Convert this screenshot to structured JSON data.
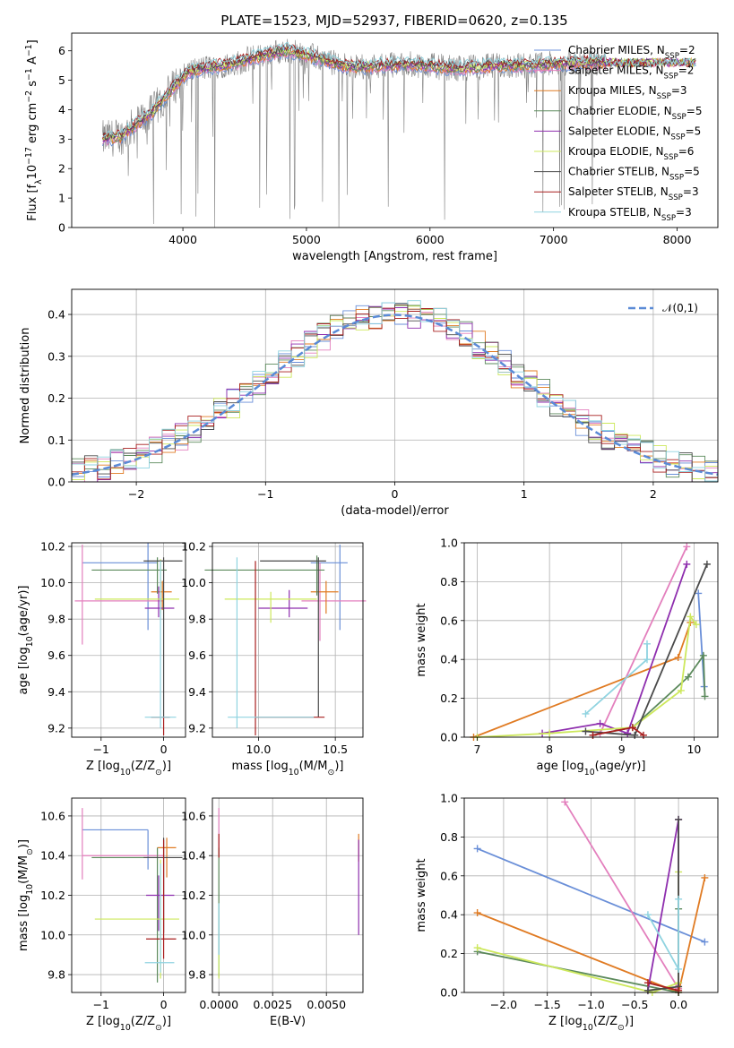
{
  "chart_data": [
    {
      "id": "spectrum",
      "type": "line",
      "title": "PLATE=1523, MJD=52937, FIBERID=0620, z=0.135",
      "xlabel": "wavelength [Angstrom, rest frame]",
      "ylabel": "Flux [f$_\\lambda$10$^{-17}$ erg cm$^{-2}$ s$^{-1}$ A$^{-1}$]",
      "xlim": [
        3100,
        8330
      ],
      "ylim": [
        0,
        6.6
      ],
      "xticks": [
        4000,
        5000,
        6000,
        7000,
        8000
      ],
      "yticks": [
        0,
        1,
        2,
        3,
        4,
        5,
        6
      ],
      "grid": false,
      "legend_position": "top-right",
      "data_color": "#808080",
      "continuum": {
        "x": [
          3350,
          3500,
          3650,
          3750,
          3850,
          3950,
          4050,
          4150,
          4300,
          4450,
          4600,
          4750,
          4850,
          4950,
          5100,
          5250,
          5400,
          5600,
          5800,
          6000,
          6200,
          6400,
          6600,
          6800,
          7000,
          7200,
          7420
        ],
        "y": [
          3.0,
          3.1,
          3.6,
          3.9,
          4.4,
          4.9,
          5.3,
          5.4,
          5.5,
          5.6,
          5.8,
          5.95,
          6.0,
          5.9,
          5.75,
          5.55,
          5.45,
          5.5,
          5.55,
          5.5,
          5.4,
          5.45,
          5.5,
          5.5,
          5.55,
          5.6,
          5.6
        ]
      },
      "series": [
        {
          "name": "Chabrier MILES, N$_{SSP}$=2",
          "color": "#6a8fd8"
        },
        {
          "name": "Salpeter MILES, N$_{SSP}$=2",
          "color": "#e37fbd"
        },
        {
          "name": "Kroupa MILES, N$_{SSP}$=3",
          "color": "#e07b23"
        },
        {
          "name": "Chabrier ELODIE, N$_{SSP}$=5",
          "color": "#5c8a5c"
        },
        {
          "name": "Salpeter ELODIE, N$_{SSP}$=5",
          "color": "#8e2eae"
        },
        {
          "name": "Kroupa ELODIE, N$_{SSP}$=6",
          "color": "#cde85c"
        },
        {
          "name": "Chabrier STELIB, N$_{SSP}$=5",
          "color": "#4a4a4a"
        },
        {
          "name": "Salpeter STELIB, N$_{SSP}$=3",
          "color": "#a81f1f"
        },
        {
          "name": "Kroupa STELIB, N$_{SSP}$=3",
          "color": "#8fd3e0"
        }
      ]
    },
    {
      "id": "residuals",
      "type": "line",
      "xlabel": "(data-model)/error",
      "ylabel": "Normed distribution",
      "xlim": [
        -2.5,
        2.5
      ],
      "ylim": [
        0,
        0.46
      ],
      "xticks": [
        -2,
        -1,
        0,
        1,
        2
      ],
      "yticks": [
        0.0,
        0.1,
        0.2,
        0.3,
        0.4
      ],
      "grid": true,
      "legend_position": "top-right",
      "reference": {
        "name": "$\\mathcal{N}(0,1)$",
        "color": "#5a8ad6"
      },
      "bin_width": 0.1
    },
    {
      "id": "age-vs-Z",
      "type": "scatter",
      "xlabel": "Z [log$_{10}$(Z/Z$_\\odot$)]",
      "ylabel": "age  [log$_{10}$(age/yr)]",
      "xlim": [
        -1.47,
        0.35
      ],
      "ylim": [
        9.15,
        10.22
      ],
      "xticks": [
        -1,
        0
      ],
      "yticks": [
        9.2,
        9.4,
        9.6,
        9.8,
        10.0,
        10.2
      ],
      "grid": true,
      "points": [
        {
          "series": 0,
          "x": -0.25,
          "y": 10.11,
          "xerr": [
            1.05,
            0.15
          ],
          "yerr": [
            0.37,
            0.11
          ]
        },
        {
          "series": 1,
          "x": -1.3,
          "y": 9.9,
          "xerr": [
            0.12,
            1.3
          ],
          "yerr": [
            0.24,
            0.31
          ]
        },
        {
          "series": 2,
          "x": -0.02,
          "y": 9.95,
          "xerr": [
            0.18,
            0.15
          ],
          "yerr": [
            0.1,
            0.06
          ]
        },
        {
          "series": 3,
          "x": -0.1,
          "y": 10.07,
          "xerr": [
            1.05,
            0.15
          ],
          "yerr": [
            0.13,
            0.07
          ]
        },
        {
          "series": 4,
          "x": -0.08,
          "y": 9.86,
          "xerr": [
            0.22,
            0.25
          ],
          "yerr": [
            0.05,
            0.12
          ]
        },
        {
          "series": 5,
          "x": -0.05,
          "y": 9.91,
          "xerr": [
            1.05,
            0.3
          ],
          "yerr": [
            0.08,
            0.22
          ]
        },
        {
          "series": 6,
          "x": 0.0,
          "y": 10.12,
          "xerr": [
            0.32,
            0.3
          ],
          "yerr": [
            0.86,
            0.02
          ]
        },
        {
          "series": 7,
          "x": 0.0,
          "y": 9.26,
          "xerr": [
            0.2,
            0.1
          ],
          "yerr": [
            0.1,
            0.0
          ]
        },
        {
          "series": 8,
          "x": -0.05,
          "y": 9.26,
          "xerr": [
            0.25,
            0.25
          ],
          "yerr": [
            0.06,
            0.86
          ]
        }
      ]
    },
    {
      "id": "age-vs-mass",
      "type": "scatter",
      "xlabel": "mass [log$_{10}$(M/M$_\\odot$)]",
      "ylabel": "",
      "xlim": [
        9.7,
        10.68
      ],
      "ylim": [
        9.15,
        10.22
      ],
      "xticks": [
        10.0,
        10.5
      ],
      "yticks": [
        9.2,
        9.4,
        9.6,
        9.8,
        10.0,
        10.2
      ],
      "grid": true,
      "points": [
        {
          "series": 0,
          "x": 10.53,
          "y": 10.11,
          "xerr": [
            0.19,
            0.05
          ],
          "yerr": [
            0.37,
            0.1
          ]
        },
        {
          "series": 1,
          "x": 10.4,
          "y": 9.9,
          "xerr": [
            0.12,
            0.3
          ],
          "yerr": [
            0.22,
            0.21
          ]
        },
        {
          "series": 2,
          "x": 10.44,
          "y": 9.95,
          "xerr": [
            0.1,
            0.08
          ],
          "yerr": [
            0.12,
            0.06
          ]
        },
        {
          "series": 3,
          "x": 10.38,
          "y": 10.07,
          "xerr": [
            0.73,
            0.05
          ],
          "yerr": [
            0.14,
            0.08
          ]
        },
        {
          "series": 4,
          "x": 10.2,
          "y": 9.86,
          "xerr": [
            0.2,
            0.12
          ],
          "yerr": [
            0.05,
            0.1
          ]
        },
        {
          "series": 5,
          "x": 10.08,
          "y": 9.91,
          "xerr": [
            0.3,
            0.3
          ],
          "yerr": [
            0.13,
            0.04
          ]
        },
        {
          "series": 6,
          "x": 10.39,
          "y": 10.12,
          "xerr": [
            0.38,
            0.05
          ],
          "yerr": [
            0.86,
            0.02
          ]
        },
        {
          "series": 7,
          "x": 9.98,
          "y": 9.26,
          "xerr": [
            0.0,
            0.45
          ],
          "yerr": [
            0.1,
            0.86
          ]
        },
        {
          "series": 8,
          "x": 9.86,
          "y": 9.26,
          "xerr": [
            0.06,
            0.5
          ],
          "yerr": [
            0.06,
            0.88
          ]
        }
      ]
    },
    {
      "id": "weight-vs-age",
      "type": "line",
      "xlabel": "age  [log$_{10}$(age/yr)]",
      "ylabel": "mass weight",
      "xlim": [
        6.82,
        10.33
      ],
      "ylim": [
        0,
        1
      ],
      "xticks": [
        7,
        8,
        9,
        10
      ],
      "yticks": [
        0.0,
        0.2,
        0.4,
        0.6,
        0.8,
        1.0
      ],
      "grid": true,
      "lines": [
        {
          "series": 0,
          "x": [
            10.06,
            10.14
          ],
          "y": [
            0.74,
            0.26
          ]
        },
        {
          "series": 1,
          "x": [
            8.7,
            9.9
          ],
          "y": [
            0.02,
            0.98
          ]
        },
        {
          "series": 2,
          "x": [
            6.95,
            9.78,
            9.95
          ],
          "y": [
            0.0,
            0.41,
            0.59
          ]
        },
        {
          "series": 3,
          "x": [
            8.6,
            9.15,
            9.92,
            10.13,
            10.15
          ],
          "y": [
            0.01,
            0.05,
            0.31,
            0.42,
            0.21
          ]
        },
        {
          "series": 4,
          "x": [
            7.9,
            8.7,
            9.08,
            9.9
          ],
          "y": [
            0.02,
            0.07,
            0.02,
            0.89
          ]
        },
        {
          "series": 5,
          "x": [
            7.0,
            8.0,
            9.15,
            9.82,
            9.95,
            10.03
          ],
          "y": [
            0.0,
            0.02,
            0.05,
            0.24,
            0.62,
            0.58
          ]
        },
        {
          "series": 6,
          "x": [
            8.5,
            9.18,
            10.18
          ],
          "y": [
            0.03,
            0.01,
            0.89
          ]
        },
        {
          "series": 7,
          "x": [
            8.6,
            9.15,
            9.3
          ],
          "y": [
            0.01,
            0.05,
            0.01
          ]
        },
        {
          "series": 8,
          "x": [
            8.5,
            9.35,
            9.35
          ],
          "y": [
            0.12,
            0.4,
            0.48
          ]
        }
      ]
    },
    {
      "id": "mass-vs-Z",
      "type": "scatter",
      "xlabel": "Z [log$_{10}$(Z/Z$_\\odot$)]",
      "ylabel": "mass [log$_{10}$(M/M$_\\odot$)]",
      "xlim": [
        -1.47,
        0.35
      ],
      "ylim": [
        9.71,
        10.69
      ],
      "xticks": [
        -1,
        0
      ],
      "yticks": [
        9.8,
        10.0,
        10.2,
        10.4,
        10.6
      ],
      "grid": true,
      "points": [
        {
          "series": 0,
          "x": -0.25,
          "y": 10.53,
          "xerr": [
            1.05,
            0.0
          ],
          "yerr": [
            0.2,
            0.0
          ]
        },
        {
          "series": 1,
          "x": -1.3,
          "y": 10.4,
          "xerr": [
            0.0,
            1.3
          ],
          "yerr": [
            0.12,
            0.24
          ]
        },
        {
          "series": 2,
          "x": 0.05,
          "y": 10.44,
          "xerr": [
            0.15,
            0.15
          ],
          "yerr": [
            0.15,
            0.05
          ]
        },
        {
          "series": 3,
          "x": -0.1,
          "y": 10.39,
          "xerr": [
            1.05,
            0.0
          ],
          "yerr": [
            0.63,
            0.05
          ]
        },
        {
          "series": 4,
          "x": -0.08,
          "y": 10.2,
          "xerr": [
            0.2,
            0.25
          ],
          "yerr": [
            0.18,
            0.1
          ]
        },
        {
          "series": 5,
          "x": -0.05,
          "y": 10.08,
          "xerr": [
            1.05,
            0.3
          ],
          "yerr": [
            0.3,
            0.3
          ]
        },
        {
          "series": 6,
          "x": 0.0,
          "y": 10.39,
          "xerr": [
            0.32,
            0.3
          ],
          "yerr": [
            0.38,
            0.1
          ]
        },
        {
          "series": 7,
          "x": 0.0,
          "y": 9.98,
          "xerr": [
            0.28,
            0.2
          ],
          "yerr": [
            0.1,
            0.5
          ]
        },
        {
          "series": 8,
          "x": -0.05,
          "y": 9.86,
          "xerr": [
            0.25,
            0.22
          ],
          "yerr": [
            0.05,
            0.5
          ]
        }
      ]
    },
    {
      "id": "mass-vs-ebv",
      "type": "scatter",
      "xlabel": "E(B-V)",
      "ylabel": "",
      "xlim": [
        -0.0003,
        0.0067
      ],
      "ylim": [
        9.71,
        10.69
      ],
      "xticks": [
        0.0,
        0.0025,
        0.005
      ],
      "xticklabels": [
        "0.0000",
        "0.0025",
        "0.0050"
      ],
      "yticks": [
        9.8,
        10.0,
        10.2,
        10.4,
        10.6
      ],
      "grid": true,
      "points": [
        {
          "series": 1,
          "x": 0.0,
          "y": 10.4,
          "yerr": [
            0.0,
            0.24
          ]
        },
        {
          "series": 2,
          "x": 0.0065,
          "y": 10.44,
          "yerr": [
            0.07,
            0.07
          ]
        },
        {
          "series": 4,
          "x": 0.0065,
          "y": 10.2,
          "yerr": [
            0.2,
            0.28
          ]
        },
        {
          "series": 3,
          "x": 0.0,
          "y": 10.39,
          "yerr": [
            0.6,
            0.05
          ]
        },
        {
          "series": 7,
          "x": 0.0,
          "y": 10.39,
          "yerr": [
            0.0,
            0.12
          ]
        },
        {
          "series": 8,
          "x": 0.0,
          "y": 9.86,
          "yerr": [
            0.05,
            0.3
          ]
        },
        {
          "series": 5,
          "x": 0.0,
          "y": 9.8,
          "yerr": [
            0.02,
            0.1
          ]
        }
      ]
    },
    {
      "id": "weight-vs-Z",
      "type": "line",
      "xlabel": "Z [log$_{10}$(Z/Z$_\\odot$)]",
      "ylabel": "mass weight",
      "xlim": [
        -2.45,
        0.45
      ],
      "ylim": [
        0,
        1
      ],
      "xticks": [
        -2.0,
        -1.5,
        -1.0,
        -0.5,
        0.0
      ],
      "xticklabels": [
        "−2.0",
        "−1.5",
        "−1.0",
        "−0.5",
        "0.0"
      ],
      "yticks": [
        0.0,
        0.2,
        0.4,
        0.6,
        0.8,
        1.0
      ],
      "grid": true,
      "lines": [
        {
          "series": 0,
          "x": [
            -2.3,
            0.3
          ],
          "y": [
            0.74,
            0.26
          ]
        },
        {
          "series": 1,
          "x": [
            -1.3,
            0.0
          ],
          "y": [
            0.98,
            0.02
          ]
        },
        {
          "series": 2,
          "x": [
            -2.3,
            0.0,
            0.3
          ],
          "y": [
            0.41,
            0.0,
            0.59
          ]
        },
        {
          "series": 3,
          "x": [
            -2.3,
            0.0,
            0.0
          ],
          "y": [
            0.21,
            0.0,
            0.43
          ]
        },
        {
          "series": 4,
          "x": [
            -0.35,
            0.0,
            0.0
          ],
          "y": [
            0.01,
            0.89,
            0.05
          ]
        },
        {
          "series": 5,
          "x": [
            -2.3,
            -0.3,
            0.0,
            0.0
          ],
          "y": [
            0.23,
            0.0,
            0.05,
            0.62
          ]
        },
        {
          "series": 6,
          "x": [
            -0.35,
            0.0,
            0.0
          ],
          "y": [
            0.01,
            0.03,
            0.89
          ]
        },
        {
          "series": 7,
          "x": [
            -0.35,
            0.0
          ],
          "y": [
            0.05,
            0.01
          ]
        },
        {
          "series": 8,
          "x": [
            -0.35,
            0.0,
            0.0
          ],
          "y": [
            0.4,
            0.12,
            0.48
          ]
        }
      ]
    }
  ]
}
